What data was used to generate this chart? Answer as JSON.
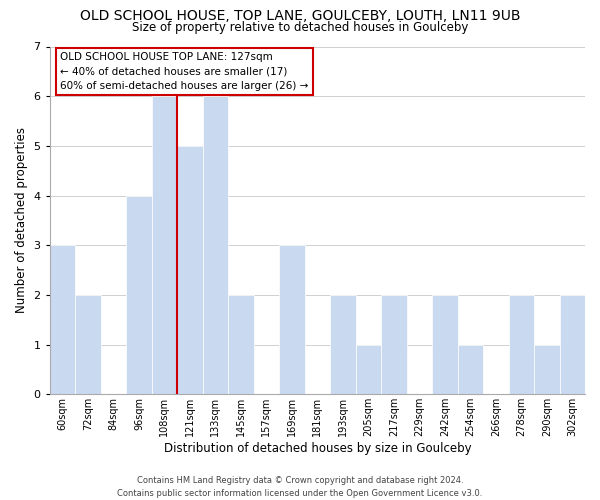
{
  "title": "OLD SCHOOL HOUSE, TOP LANE, GOULCEBY, LOUTH, LN11 9UB",
  "subtitle": "Size of property relative to detached houses in Goulceby",
  "xlabel": "Distribution of detached houses by size in Goulceby",
  "ylabel": "Number of detached properties",
  "bin_labels": [
    "60sqm",
    "72sqm",
    "84sqm",
    "96sqm",
    "108sqm",
    "121sqm",
    "133sqm",
    "145sqm",
    "157sqm",
    "169sqm",
    "181sqm",
    "193sqm",
    "205sqm",
    "217sqm",
    "229sqm",
    "242sqm",
    "254sqm",
    "266sqm",
    "278sqm",
    "290sqm",
    "302sqm"
  ],
  "bar_heights": [
    3,
    2,
    0,
    4,
    6,
    5,
    6,
    2,
    0,
    3,
    0,
    2,
    1,
    2,
    0,
    2,
    1,
    0,
    2,
    1,
    2
  ],
  "bar_color": "#c9d9f0",
  "bar_edge_color": "#ffffff",
  "property_line_color": "#cc0000",
  "property_line_bin_index": 5,
  "ylim": [
    0,
    7
  ],
  "yticks": [
    0,
    1,
    2,
    3,
    4,
    5,
    6,
    7
  ],
  "annotation_line1": "OLD SCHOOL HOUSE TOP LANE: 127sqm",
  "annotation_line2": "← 40% of detached houses are smaller (17)",
  "annotation_line3": "60% of semi-detached houses are larger (26) →",
  "annotation_box_color": "#ffffff",
  "annotation_box_edge": "#cc0000",
  "footer_line1": "Contains HM Land Registry data © Crown copyright and database right 2024.",
  "footer_line2": "Contains public sector information licensed under the Open Government Licence v3.0.",
  "background_color": "#ffffff",
  "grid_color": "#d0d0d0"
}
